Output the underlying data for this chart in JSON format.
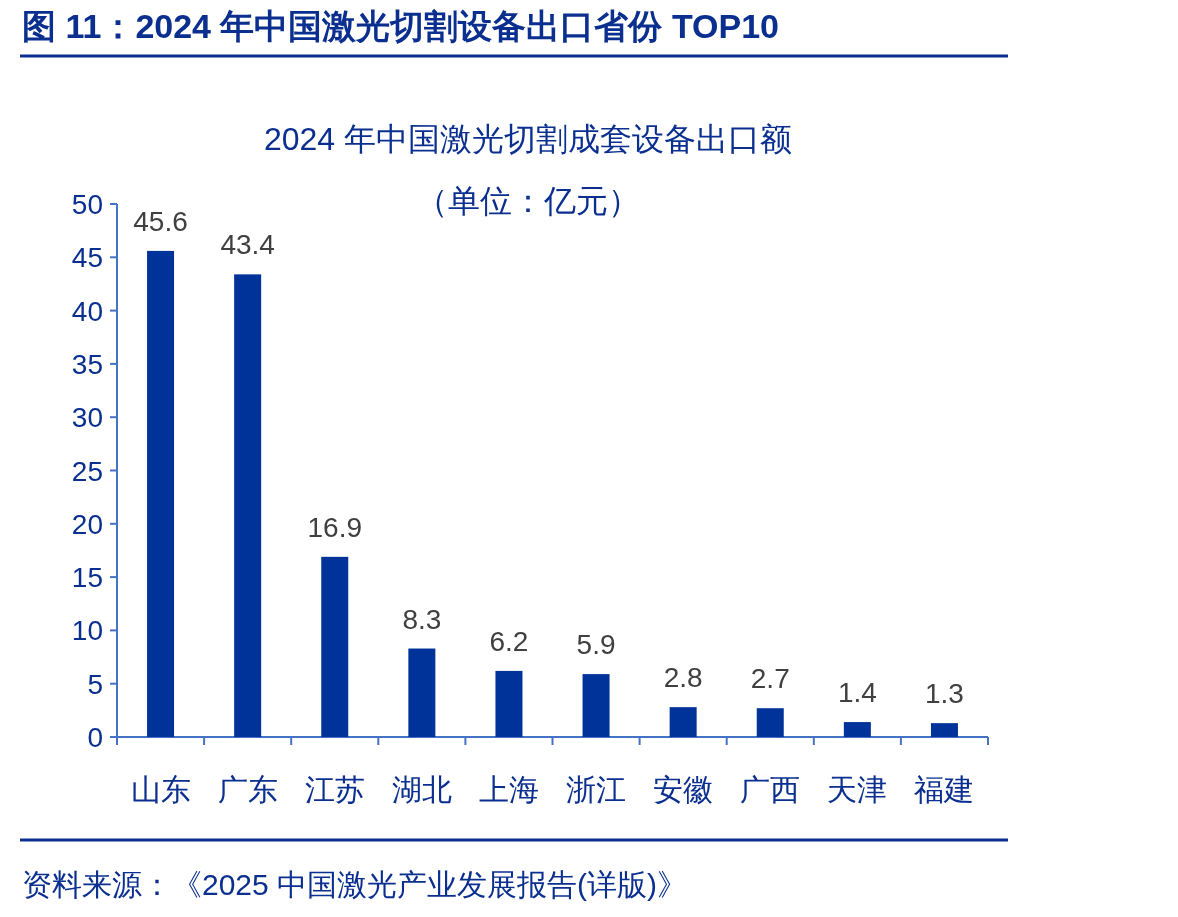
{
  "chart_data": {
    "type": "bar",
    "title": "图 11：2024 年中国激光切割设备出口省份 TOP10",
    "subtitle": "2024 年中国激光切割成套设备出口额（单位：亿元）",
    "categories": [
      "山东",
      "广东",
      "江苏",
      "湖北",
      "上海",
      "浙江",
      "安徽",
      "广西",
      "天津",
      "福建"
    ],
    "values": [
      45.6,
      43.4,
      16.9,
      8.3,
      6.2,
      5.9,
      2.8,
      2.7,
      1.4,
      1.3
    ],
    "color": "#003399",
    "ylim": [
      0,
      50
    ],
    "yticks": [
      0,
      5,
      10,
      15,
      20,
      25,
      30,
      35,
      40,
      45,
      50
    ],
    "data_labels": true,
    "grid": false,
    "annotations": [
      "资料来源：《2025 中国激光产业发展报告(详版)》"
    ]
  }
}
